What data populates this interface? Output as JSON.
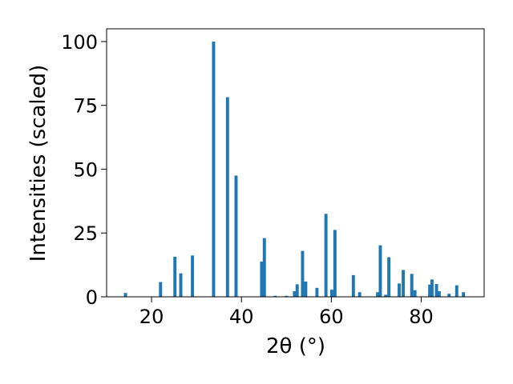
{
  "chart_data": {
    "type": "bar",
    "xlabel": "2θ (°)",
    "ylabel": "Intensities (scaled)",
    "xlim": [
      10,
      94
    ],
    "ylim": [
      0,
      105
    ],
    "xticks": [
      20,
      40,
      60,
      80
    ],
    "yticks": [
      0,
      25,
      50,
      75,
      100
    ],
    "grid": false,
    "color": "#1f77b4",
    "bar_width": 0.7,
    "x": [
      14.2,
      22.0,
      25.2,
      26.5,
      29.1,
      33.8,
      36.9,
      38.8,
      44.5,
      45.1,
      47.5,
      50.0,
      51.8,
      52.4,
      53.6,
      54.3,
      56.8,
      58.8,
      60.1,
      60.8,
      64.9,
      66.3,
      70.3,
      70.9,
      72.1,
      72.8,
      75.1,
      76.0,
      77.9,
      78.6,
      81.9,
      82.4,
      83.4,
      84.0,
      86.2,
      87.9,
      89.4
    ],
    "values": [
      1.5,
      5.8,
      15.7,
      9.2,
      16.2,
      100,
      78.2,
      47.5,
      13.8,
      23.0,
      0.4,
      0.4,
      2.2,
      4.9,
      18.0,
      6.0,
      3.5,
      32.5,
      2.8,
      26.2,
      8.5,
      1.8,
      1.8,
      20.2,
      0.8,
      15.5,
      5.2,
      10.5,
      9.0,
      2.6,
      4.8,
      6.8,
      5.0,
      2.2,
      1.2,
      4.5,
      1.8
    ]
  }
}
